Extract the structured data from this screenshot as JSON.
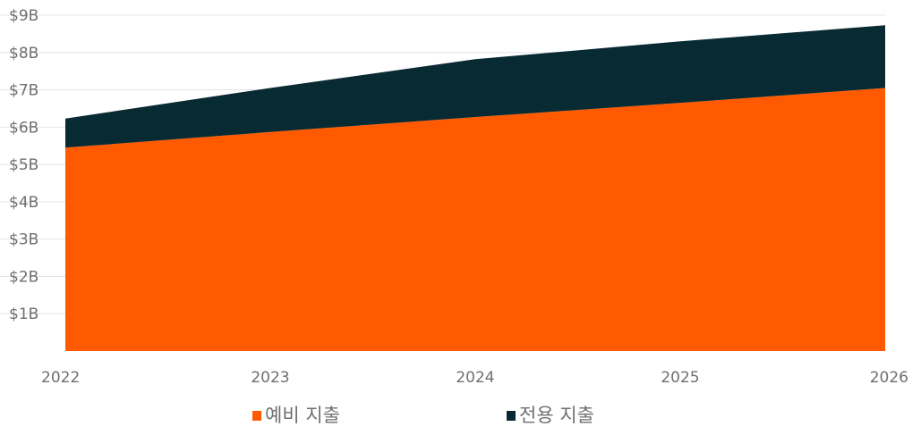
{
  "chart_data": {
    "type": "area",
    "stacked": true,
    "x": [
      "2022",
      "2023",
      "2024",
      "2025",
      "2026"
    ],
    "series": [
      {
        "name": "예비 지출",
        "values": [
          5.45,
          5.87,
          6.27,
          6.65,
          7.05
        ],
        "color": "#ff5a00"
      },
      {
        "name": "전용 지출",
        "values": [
          0.78,
          1.18,
          1.55,
          1.65,
          1.68
        ],
        "color": "#082a33"
      }
    ],
    "ylim": [
      0,
      9
    ],
    "yticks": [
      {
        "value": 1,
        "label": "$1B"
      },
      {
        "value": 2,
        "label": "$2B"
      },
      {
        "value": 3,
        "label": "$3B"
      },
      {
        "value": 4,
        "label": "$4B"
      },
      {
        "value": 5,
        "label": "$5B"
      },
      {
        "value": 6,
        "label": "$6B"
      },
      {
        "value": 7,
        "label": "$7B"
      },
      {
        "value": 8,
        "label": "$8B"
      },
      {
        "value": 9,
        "label": "$9B"
      }
    ],
    "grid": true,
    "legend_position": "bottom"
  }
}
